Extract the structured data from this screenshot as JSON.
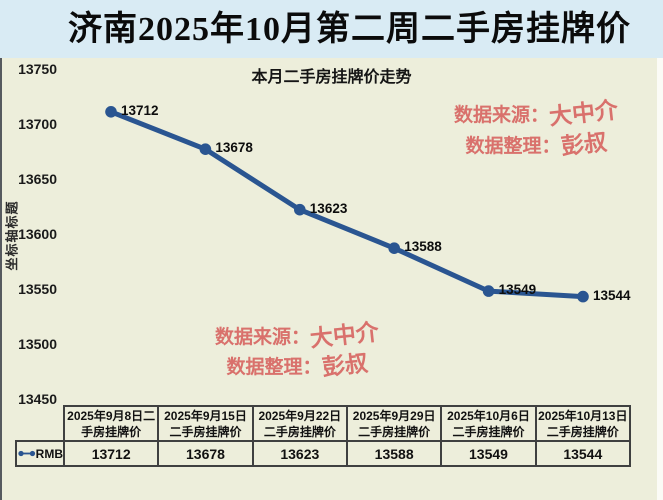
{
  "page": {
    "title": "济南2025年10月第二周二手房挂牌价"
  },
  "watermark": {
    "source_label": "数据来源：",
    "source_value": "大中介",
    "editor_label": "数据整理：",
    "editor_value": "彭叔"
  },
  "chart_data": {
    "type": "line",
    "title": "本月二手房挂牌价走势",
    "ylabel": "坐标轴标题",
    "series_name": "RMB",
    "categories": [
      "2025年9月8日二手房挂牌价",
      "2025年9月15日二手房挂牌价",
      "2025年9月22日二手房挂牌价",
      "2025年9月29日二手房挂牌价",
      "2025年10月6日二手房挂牌价",
      "2025年10月13日二手房挂牌价"
    ],
    "values": [
      13712,
      13678,
      13623,
      13588,
      13549,
      13544
    ],
    "ylim": [
      13450,
      13750
    ],
    "yticks": [
      13750,
      13700,
      13650,
      13600,
      13550,
      13500,
      13450
    ],
    "grid": false,
    "legend_position": "table-row-label",
    "data_table_shown": true,
    "line_color": "#2a5591",
    "background_color": "#edeedb",
    "title_band_color": "#d9ebf4",
    "watermark_color": "#d9716c"
  }
}
